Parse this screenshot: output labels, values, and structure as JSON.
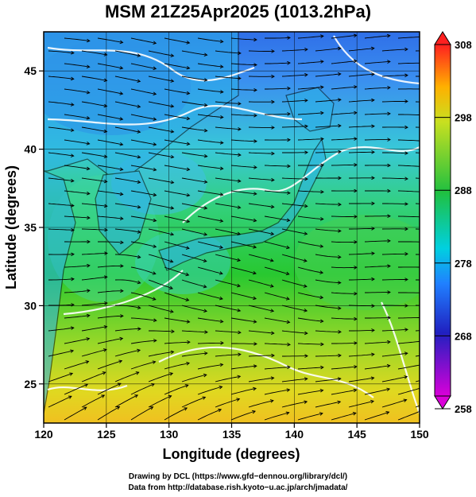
{
  "title": "MSM 21Z25Apr2025 (1013.2hPa)",
  "axes": {
    "xlabel": "Longitude (degrees)",
    "ylabel": "Latitude  (degrees)",
    "xlim": [
      120,
      150
    ],
    "ylim": [
      22.5,
      47.5
    ],
    "xticks": [
      "120",
      "125",
      "130",
      "135",
      "140",
      "145",
      "150"
    ],
    "yticks": [
      "25",
      "30",
      "35",
      "40",
      "45"
    ]
  },
  "colorbar": {
    "ticks": [
      "308",
      "298",
      "288",
      "278",
      "268",
      "258"
    ],
    "range": [
      258,
      308
    ],
    "colors": [
      "#d900d9",
      "#4060ff",
      "#00c8e0",
      "#20d020",
      "#e0e020",
      "#ff8000",
      "#ff2020"
    ]
  },
  "footer": {
    "line1": "Drawing by DCL (https://www.gfd−dennou.org/library/dcl/)",
    "line2": "Data from http://database.rish.kyoto−u.ac.jp/arch/jmadata/"
  }
}
